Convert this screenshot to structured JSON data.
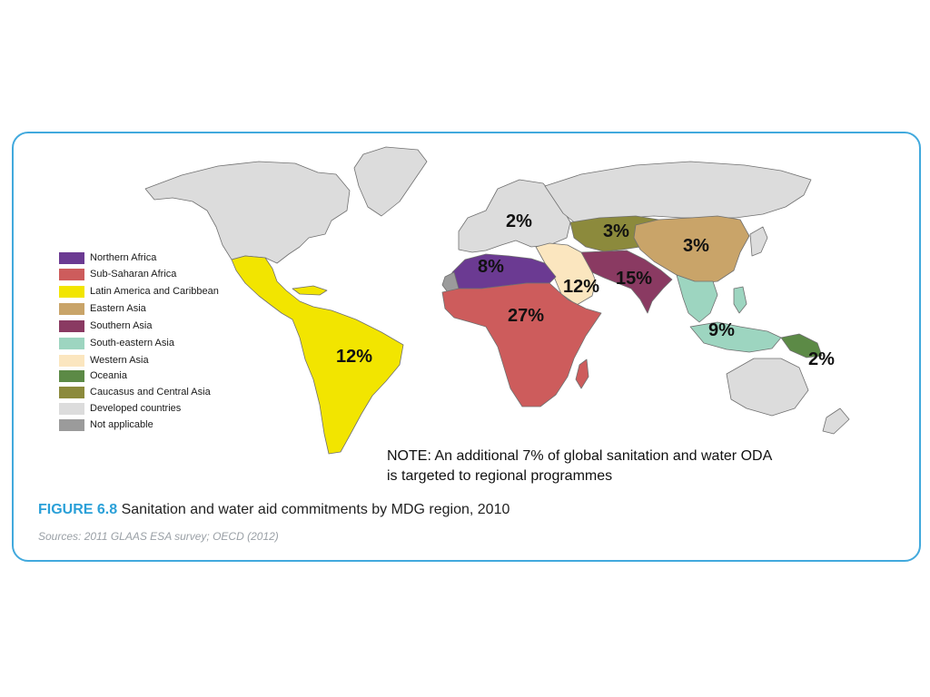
{
  "legend": {
    "items": [
      {
        "label": "Northern Africa",
        "color": "#6b3a92"
      },
      {
        "label": "Sub-Saharan Africa",
        "color": "#cd5c5c"
      },
      {
        "label": "Latin America and Caribbean",
        "color": "#f2e500"
      },
      {
        "label": "Eastern Asia",
        "color": "#c9a469"
      },
      {
        "label": "Southern Asia",
        "color": "#8a3a62"
      },
      {
        "label": "South-eastern Asia",
        "color": "#9dd5c0"
      },
      {
        "label": "Western Asia",
        "color": "#fbe6bf"
      },
      {
        "label": "Oceania",
        "color": "#5c8a46"
      },
      {
        "label": "Caucasus and Central Asia",
        "color": "#8c8a3c"
      },
      {
        "label": "Developed countries",
        "color": "#dcdcdc"
      },
      {
        "label": "Not applicable",
        "color": "#9b9b9b"
      }
    ]
  },
  "map_labels": {
    "developed": "2%",
    "caucasus_central_asia": "3%",
    "eastern_asia": "3%",
    "northern_africa": "8%",
    "western_asia": "12%",
    "southern_asia": "15%",
    "sub_saharan_africa": "27%",
    "south_eastern_asia": "9%",
    "oceania": "2%",
    "latin_america": "12%"
  },
  "note": {
    "line1": "NOTE: An additional 7% of global sanitation and water ODA",
    "line2": "is targeted to regional programmes"
  },
  "caption": {
    "figure_label": "FIGURE 6.8",
    "text": "Sanitation and water aid commitments by MDG region, 2010"
  },
  "sources": "Sources: 2011 GLAAS ESA survey; OECD (2012)"
}
